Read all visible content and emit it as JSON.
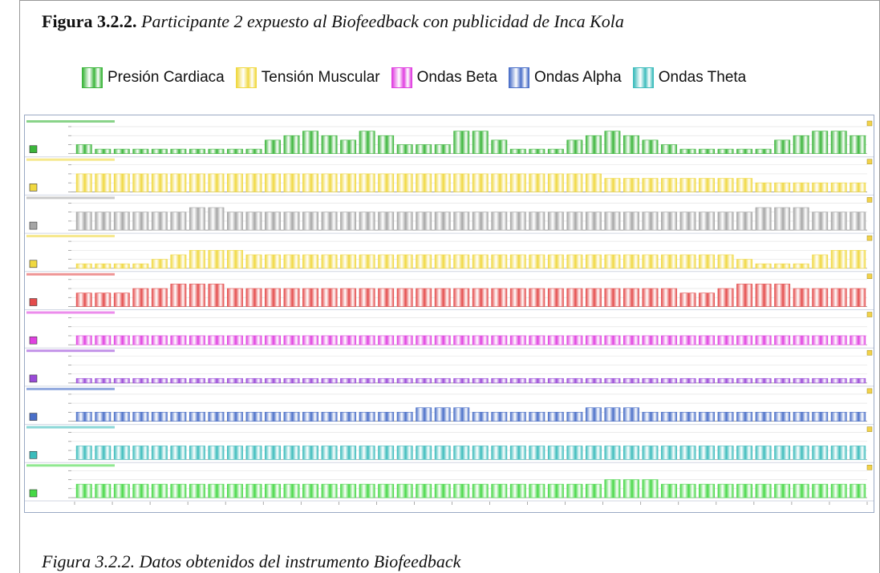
{
  "figure": {
    "title_prefix": "Figura 3.2.2.",
    "title_text": "Participante 2 expuesto al Biofeedback con publicidad de Inca Kola",
    "caption": "Figura 3.2.2. Datos obtenidos del instrumento Biofeedback"
  },
  "legend": [
    {
      "label": "Presión Cardiaca",
      "color": "#3bb53b"
    },
    {
      "label": "Tensión Muscular",
      "color": "#f0d840"
    },
    {
      "label": "Ondas Beta",
      "color": "#e040e0"
    },
    {
      "label": "Ondas Alpha",
      "color": "#4a6fc8"
    },
    {
      "label": "Ondas Theta",
      "color": "#3cbcbc"
    }
  ],
  "chart_data": {
    "type": "bar",
    "x_count": 42,
    "series": [
      {
        "name": "",
        "color": "#3bb53b",
        "values": [
          2,
          1,
          1,
          1,
          1,
          1,
          1,
          1,
          1,
          1,
          3,
          4,
          5,
          4,
          3,
          5,
          4,
          2,
          2,
          2,
          5,
          5,
          3,
          1,
          1,
          1,
          3,
          4,
          5,
          4,
          3,
          2,
          1,
          1,
          1,
          1,
          1,
          3,
          4,
          5,
          5,
          4
        ]
      },
      {
        "name": "",
        "color": "#f0d840",
        "values": [
          4,
          4,
          4,
          4,
          4,
          4,
          4,
          4,
          4,
          4,
          4,
          4,
          4,
          4,
          4,
          4,
          4,
          4,
          4,
          4,
          4,
          4,
          4,
          4,
          4,
          4,
          4,
          4,
          3,
          3,
          3,
          3,
          3,
          3,
          3,
          3,
          2,
          2,
          2,
          2,
          2,
          2
        ]
      },
      {
        "name": "",
        "color": "#a6a6a6",
        "values": [
          4,
          4,
          4,
          4,
          4,
          4,
          5,
          5,
          4,
          4,
          4,
          4,
          4,
          4,
          4,
          4,
          4,
          4,
          4,
          4,
          4,
          4,
          4,
          4,
          4,
          4,
          4,
          4,
          4,
          4,
          4,
          4,
          4,
          4,
          4,
          4,
          5,
          5,
          5,
          4,
          4,
          4
        ]
      },
      {
        "name": "",
        "color": "#f0d840",
        "values": [
          1,
          1,
          1,
          1,
          2,
          3,
          4,
          4,
          4,
          3,
          3,
          3,
          3,
          3,
          3,
          3,
          3,
          3,
          3,
          3,
          3,
          3,
          3,
          3,
          3,
          3,
          3,
          3,
          3,
          3,
          3,
          3,
          3,
          3,
          3,
          2,
          1,
          1,
          1,
          3,
          4,
          4
        ]
      },
      {
        "name": "",
        "color": "#e44c4c",
        "values": [
          3,
          3,
          3,
          4,
          4,
          5,
          5,
          5,
          4,
          4,
          4,
          4,
          4,
          4,
          4,
          4,
          4,
          4,
          4,
          4,
          4,
          4,
          4,
          4,
          4,
          4,
          4,
          4,
          4,
          4,
          4,
          4,
          3,
          3,
          4,
          5,
          5,
          5,
          4,
          4,
          4,
          4
        ]
      },
      {
        "name": "",
        "color": "#e040e0",
        "values": [
          2,
          2,
          2,
          2,
          2,
          2,
          2,
          2,
          2,
          2,
          2,
          2,
          2,
          2,
          2,
          2,
          2,
          2,
          2,
          2,
          2,
          2,
          2,
          2,
          2,
          2,
          2,
          2,
          2,
          2,
          2,
          2,
          2,
          2,
          2,
          2,
          2,
          2,
          2,
          2,
          2,
          2
        ]
      },
      {
        "name": "",
        "color": "#9a4ad8",
        "values": [
          1,
          1,
          1,
          1,
          1,
          1,
          1,
          1,
          1,
          1,
          1,
          1,
          1,
          1,
          1,
          1,
          1,
          1,
          1,
          1,
          1,
          1,
          1,
          1,
          1,
          1,
          1,
          1,
          1,
          1,
          1,
          1,
          1,
          1,
          1,
          1,
          1,
          1,
          1,
          1,
          1,
          1
        ]
      },
      {
        "name": "",
        "color": "#4a6fc8",
        "values": [
          2,
          2,
          2,
          2,
          2,
          2,
          2,
          2,
          2,
          2,
          2,
          2,
          2,
          2,
          2,
          2,
          2,
          2,
          3,
          3,
          3,
          2,
          2,
          2,
          2,
          2,
          2,
          3,
          3,
          3,
          2,
          2,
          2,
          2,
          2,
          2,
          2,
          2,
          2,
          2,
          2,
          2
        ]
      },
      {
        "name": "",
        "color": "#3cbcbc",
        "values": [
          3,
          3,
          3,
          3,
          3,
          3,
          3,
          3,
          3,
          3,
          3,
          3,
          3,
          3,
          3,
          3,
          3,
          3,
          3,
          3,
          3,
          3,
          3,
          3,
          3,
          3,
          3,
          3,
          3,
          3,
          3,
          3,
          3,
          3,
          3,
          3,
          3,
          3,
          3,
          3,
          3,
          3
        ]
      },
      {
        "name": "",
        "color": "#46d846",
        "values": [
          3,
          3,
          3,
          3,
          3,
          3,
          3,
          3,
          3,
          3,
          3,
          3,
          3,
          3,
          3,
          3,
          3,
          3,
          3,
          3,
          3,
          3,
          3,
          3,
          3,
          3,
          3,
          3,
          4,
          4,
          4,
          3,
          3,
          3,
          3,
          3,
          3,
          3,
          3,
          3,
          3,
          3
        ]
      }
    ],
    "ylim": [
      0,
      6
    ],
    "grid": true,
    "legend_position": "top"
  }
}
